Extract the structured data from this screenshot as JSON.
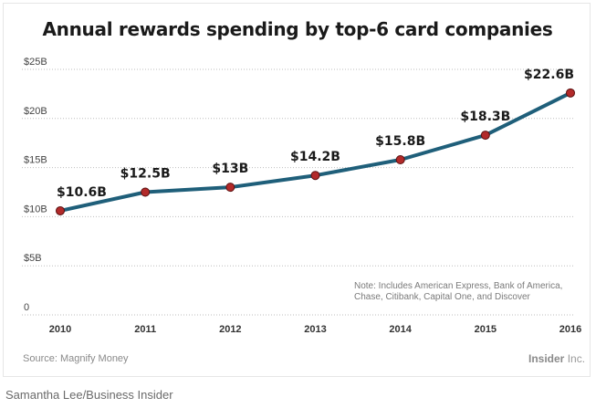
{
  "chart_data": {
    "type": "line",
    "title": "Annual rewards spending by top-6 card companies",
    "categories": [
      "2010",
      "2011",
      "2012",
      "2013",
      "2014",
      "2015",
      "2016"
    ],
    "series": [
      {
        "values": [
          10.6,
          12.5,
          13,
          14.2,
          15.8,
          18.3,
          22.6
        ]
      }
    ],
    "data_labels": [
      "$10.6B",
      "$12.5B",
      "$13B",
      "$14.2B",
      "$15.8B",
      "$18.3B",
      "$22.6B"
    ],
    "y_ticks": [
      0,
      5,
      10,
      15,
      20,
      25
    ],
    "y_tick_labels": [
      "0",
      "$5B",
      "$10B",
      "$15B",
      "$20B",
      "$25B"
    ],
    "ylim": [
      0,
      25
    ],
    "grid": "horizontal dotted",
    "xlabel": "",
    "ylabel": "",
    "note_lines": [
      "Note: Includes American Express, Bank of America,",
      "Chase, Citibank, Capital One, and Discover"
    ],
    "colors": {
      "line": "#1f5f7a",
      "marker": "#b22a2a",
      "marker_edge": "#5a1010",
      "grid": "#bdbdbd"
    }
  },
  "footer": {
    "source": "Source: Magnify Money",
    "brand_bold": "Insider",
    "brand_light": " Inc."
  },
  "credit": "Samantha Lee/Business Insider"
}
